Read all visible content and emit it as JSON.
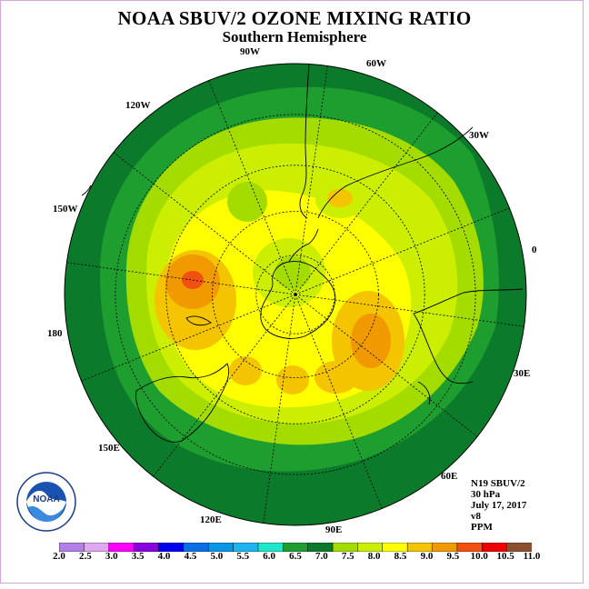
{
  "header": {
    "title": "NOAA SBUV/2 OZONE MIXING RATIO",
    "subtitle": "Southern Hemisphere"
  },
  "map": {
    "projection": "polar-stereographic-south",
    "center": "South Pole",
    "longitude_labels": {
      "lon_0": "0",
      "lon_30w": "30W",
      "lon_60w": "60W",
      "lon_90w": "90W",
      "lon_120w": "120W",
      "lon_150w": "150W",
      "lon_180": "180",
      "lon_150e": "150E",
      "lon_120e": "120E",
      "lon_90e": "90E",
      "lon_60e": "60E",
      "lon_30e": "30E"
    },
    "colors": {
      "dark_green": "#0b7a2b",
      "mid_green": "#1e9e2e",
      "green": "#48b82a",
      "yellow_green": "#a4dc00",
      "lime": "#ccee00",
      "yellow": "#ffff00",
      "gold": "#f4c400",
      "orange": "#f09a00",
      "red_orange": "#f05010"
    }
  },
  "info": {
    "instrument": "N19 SBUV/2",
    "level": "30 hPa",
    "date": "July 17, 2017",
    "version": "v8",
    "units": "PPM"
  },
  "logo": {
    "text": "NOAA"
  },
  "colorbar": {
    "labels": [
      "2.0",
      "2.5",
      "3.0",
      "3.5",
      "4.0",
      "4.5",
      "5.0",
      "5.5",
      "6.0",
      "6.5",
      "7.0",
      "7.5",
      "8.0",
      "8.5",
      "9.0",
      "9.5",
      "10.0",
      "10.5",
      "11.0"
    ],
    "colors": [
      "#b27fe8",
      "#e0a8f0",
      "#ff00ff",
      "#8800dd",
      "#0000ee",
      "#0a6ee6",
      "#0a96e6",
      "#1eb4f0",
      "#1ee6c8",
      "#1e9e2e",
      "#0a7a2a",
      "#a4dc00",
      "#ccee00",
      "#ffff00",
      "#f4c400",
      "#f09a00",
      "#f05010",
      "#ee0000",
      "#8a5030"
    ]
  }
}
